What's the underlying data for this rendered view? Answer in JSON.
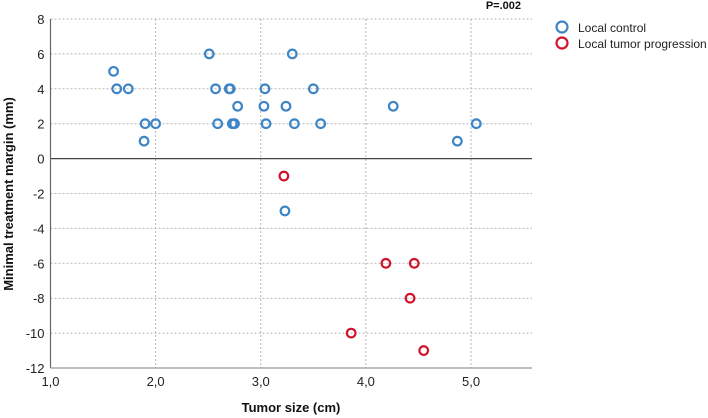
{
  "chart_data": {
    "type": "scatter",
    "title": "",
    "annotation": "P=.002",
    "xlabel": "Tumor size (cm)",
    "ylabel": "Minimal treatment margin (mm)",
    "xlim": [
      1.0,
      5.58
    ],
    "ylim": [
      -12,
      8
    ],
    "xticks": [
      1.0,
      2.0,
      3.0,
      4.0,
      5.0
    ],
    "xtick_labels": [
      "1,0",
      "2,0",
      "3,0",
      "4,0",
      "5,0"
    ],
    "yticks": [
      8,
      6,
      4,
      2,
      0,
      -2,
      -4,
      -6,
      -8,
      -10,
      -12
    ],
    "ytick_labels": [
      "8",
      "6",
      "4",
      "2",
      "0",
      "-2",
      "-4",
      "-6",
      "-8",
      "-10",
      "-12"
    ],
    "grid": true,
    "legend_position": "top-right-outside",
    "series": [
      {
        "name": "Local control",
        "color": "#3d85c6",
        "points": [
          [
            1.6,
            5
          ],
          [
            1.63,
            4
          ],
          [
            1.74,
            4
          ],
          [
            1.89,
            1
          ],
          [
            1.9,
            2
          ],
          [
            2.0,
            2
          ],
          [
            2.51,
            6
          ],
          [
            2.57,
            4
          ],
          [
            2.59,
            2
          ],
          [
            2.7,
            4
          ],
          [
            2.71,
            4
          ],
          [
            2.73,
            2
          ],
          [
            2.75,
            2
          ],
          [
            2.78,
            3
          ],
          [
            3.03,
            3
          ],
          [
            3.04,
            4
          ],
          [
            3.05,
            2
          ],
          [
            3.24,
            3
          ],
          [
            3.3,
            6
          ],
          [
            3.32,
            2
          ],
          [
            3.5,
            4
          ],
          [
            3.57,
            2
          ],
          [
            3.23,
            -3
          ],
          [
            4.26,
            3
          ],
          [
            4.87,
            1
          ],
          [
            5.05,
            2
          ]
        ]
      },
      {
        "name": "Local tumor progression",
        "color": "#d0142c",
        "points": [
          [
            3.22,
            -1
          ],
          [
            4.19,
            -6
          ],
          [
            4.46,
            -6
          ],
          [
            4.42,
            -8
          ],
          [
            3.86,
            -10
          ],
          [
            4.55,
            -11
          ]
        ]
      }
    ]
  }
}
